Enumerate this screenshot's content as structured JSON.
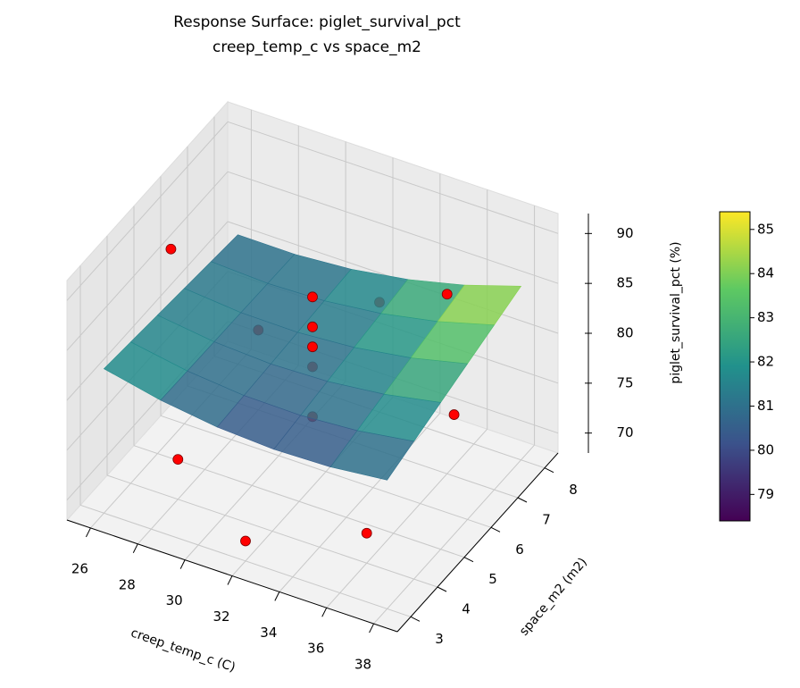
{
  "chart_data": {
    "type": "surface3d",
    "title": "Response Surface: piglet_survival_pct",
    "subtitle": "creep_temp_c vs space_m2",
    "x_label": "creep_temp_c (C)",
    "y_label": "space_m2 (m2)",
    "z_label": "piglet_survival_pct (%)",
    "xlim": [
      25,
      39
    ],
    "xticks": [
      26,
      28,
      30,
      32,
      34,
      36,
      38
    ],
    "ylim": [
      2.5,
      8.5
    ],
    "yticks": [
      3,
      4,
      5,
      6,
      7,
      8
    ],
    "zlim": [
      68,
      92
    ],
    "zticks": [
      70,
      75,
      80,
      85,
      90
    ],
    "surface": {
      "x": [
        26,
        28.4,
        30.8,
        33.2,
        35.6,
        38
      ],
      "y": [
        3,
        4,
        5,
        6,
        7,
        8
      ],
      "z": [
        [
          82.47,
          81.24,
          80.46,
          80.15,
          80.3,
          80.91
        ],
        [
          82.17,
          81.18,
          80.64,
          80.57,
          80.96,
          81.81
        ],
        [
          81.87,
          81.12,
          80.82,
          80.99,
          81.62,
          82.71
        ],
        [
          81.57,
          81.06,
          81.0,
          81.41,
          82.28,
          83.61
        ],
        [
          81.27,
          81.0,
          81.18,
          81.83,
          82.94,
          84.51
        ],
        [
          80.97,
          80.94,
          81.36,
          82.25,
          83.6,
          85.41
        ]
      ]
    },
    "colormap": "viridis",
    "clim": [
      78.4,
      85.4
    ],
    "cticks": [
      79,
      80,
      81,
      82,
      83,
      84,
      85
    ],
    "points": {
      "color": "#ff0000",
      "x": [
        28,
        36,
        28,
        36,
        26,
        38,
        32,
        32,
        32,
        32,
        32,
        32,
        32
      ],
      "y": [
        4,
        4,
        7,
        7,
        5.5,
        5.5,
        3,
        8,
        5.5,
        5.5,
        5.5,
        5.5,
        5.5
      ],
      "z": [
        72,
        71,
        76,
        86,
        87,
        80,
        70,
        79,
        80,
        82,
        84,
        87,
        75
      ]
    }
  }
}
